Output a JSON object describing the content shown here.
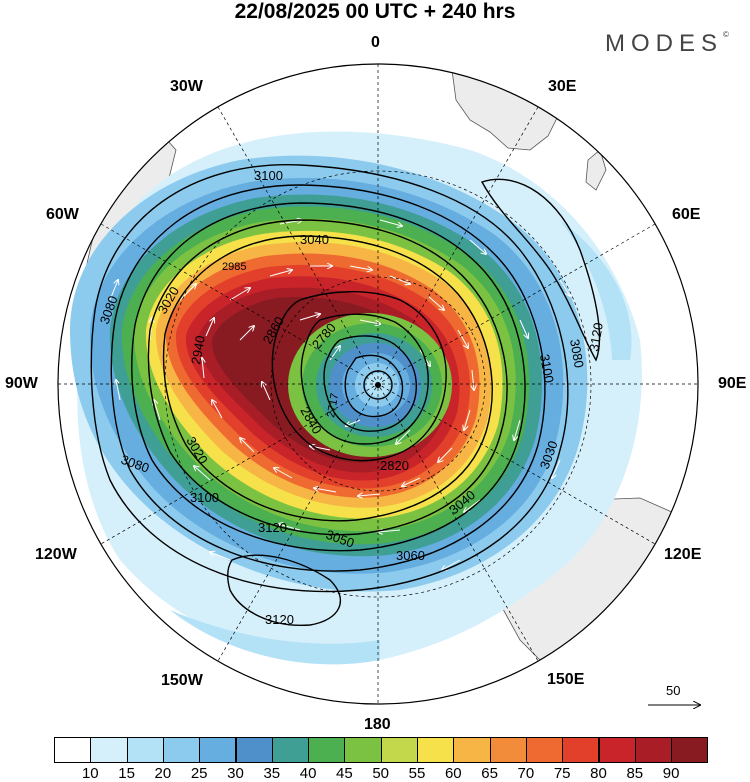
{
  "header": {
    "title": "22/08/2025  00 UTC  + 240 hrs",
    "brand": "MODES",
    "brand_mark": "©"
  },
  "map": {
    "projection": "south-polar-stereographic",
    "longitude_labels": {
      "lon_0": "0",
      "lon_30e": "30E",
      "lon_60e": "60E",
      "lon_90e": "90E",
      "lon_120e": "120E",
      "lon_150e": "150E",
      "lon_180": "180",
      "lon_150w": "150W",
      "lon_120w": "120W",
      "lon_90w": "90W",
      "lon_60w": "60W",
      "lon_30w": "30W"
    },
    "contour_labels": [
      "3100",
      "3080",
      "3040",
      "3020",
      "2985",
      "2940",
      "2860",
      "2780",
      "2717",
      "2840",
      "2820",
      "3050",
      "3060",
      "3040",
      "3030",
      "3020",
      "3080",
      "3100",
      "3120",
      "3120",
      "3080",
      "3100",
      "3120"
    ],
    "wind_reference": {
      "value": "50",
      "label": "50"
    }
  },
  "colorbar": {
    "ticks": [
      "10",
      "15",
      "20",
      "25",
      "30",
      "35",
      "40",
      "45",
      "50",
      "55",
      "60",
      "65",
      "70",
      "75",
      "80",
      "85",
      "90"
    ],
    "colors": [
      "#ffffff",
      "#d6f0fb",
      "#b3e2f7",
      "#8ccbee",
      "#66aee0",
      "#4f90ca",
      "#3f9f95",
      "#4caf50",
      "#7cc242",
      "#c3d84b",
      "#f6e14a",
      "#f7b545",
      "#f28c3a",
      "#ee6a30",
      "#e2402b",
      "#c8242a",
      "#a91d27",
      "#881a22"
    ]
  }
}
